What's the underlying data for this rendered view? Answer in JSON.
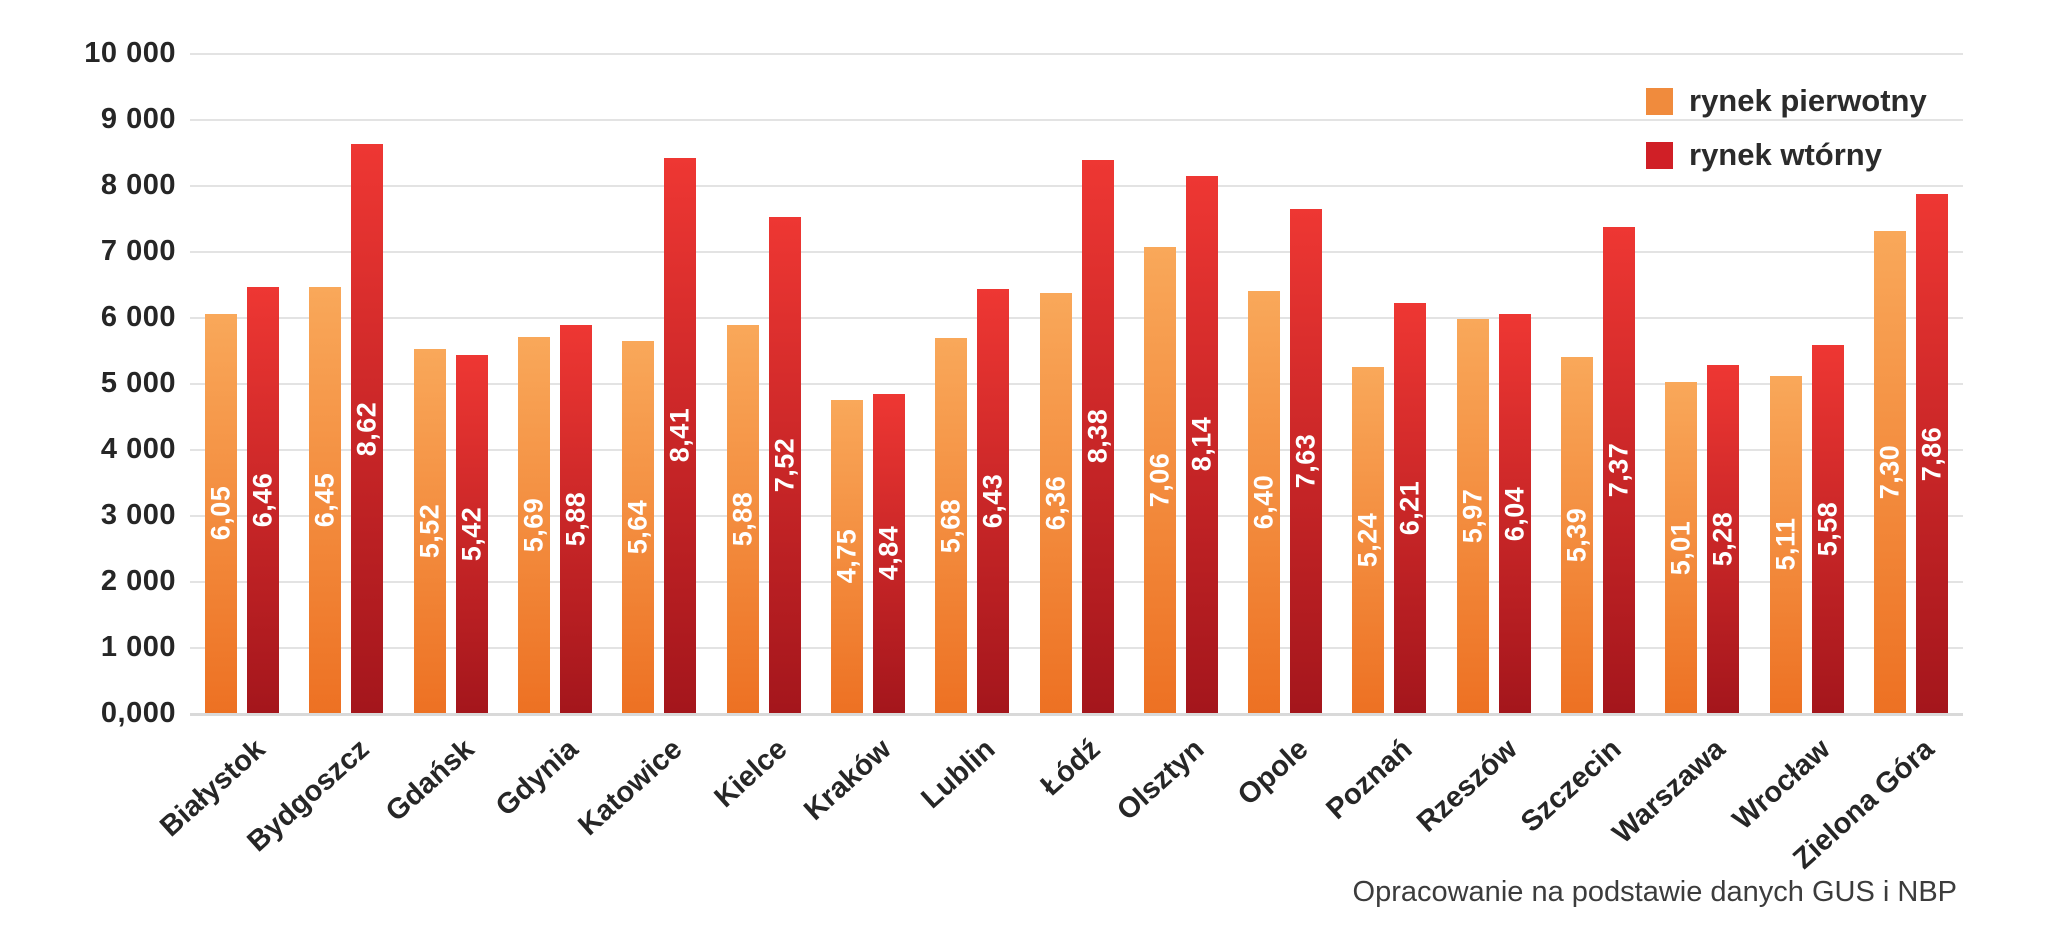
{
  "chart_data": {
    "type": "bar",
    "title": "",
    "categories": [
      "Białystok",
      "Bydgoszcz",
      "Gdańsk",
      "Gdynia",
      "Katowice",
      "Kielce",
      "Kraków",
      "Lublin",
      "Łódź",
      "Olsztyn",
      "Opole",
      "Poznań",
      "Rzeszów",
      "Szczecin",
      "Warszawa",
      "Wrocław",
      "Zielona Góra"
    ],
    "series": [
      {
        "name": "rynek pierwotny",
        "values": [
          6050,
          6450,
          5520,
          5690,
          5640,
          5880,
          4750,
          5680,
          6360,
          7060,
          6400,
          5240,
          5970,
          5390,
          5010,
          5110,
          7300
        ],
        "labels": [
          "6,05",
          "6,45",
          "5,52",
          "5,69",
          "5,64",
          "5,88",
          "4,75",
          "5,68",
          "6,36",
          "7,06",
          "6,40",
          "5,24",
          "5,97",
          "5,39",
          "5,01",
          "5,11",
          "7,30"
        ]
      },
      {
        "name": "rynek wtórny",
        "values": [
          6460,
          8620,
          5420,
          5880,
          8410,
          7520,
          4840,
          6430,
          8380,
          8140,
          7630,
          6210,
          6040,
          7370,
          5280,
          5580,
          7860
        ],
        "labels": [
          "6,46",
          "8,62",
          "5,42",
          "5,88",
          "8,41",
          "7,52",
          "4,84",
          "6,43",
          "8,38",
          "8,14",
          "7,63",
          "6,21",
          "6,04",
          "7,37",
          "5,28",
          "5,58",
          "7,86"
        ]
      }
    ],
    "y_axis": {
      "min": 0,
      "max": 10000,
      "tick_step": 1000,
      "tick_labels": [
        "10 000",
        "9 000",
        "8 000",
        "7 000",
        "6 000",
        "5 000",
        "4 000",
        "3 000",
        "2 000",
        "1 000",
        "0,000"
      ]
    },
    "legend": {
      "position": "top-right",
      "entries": [
        {
          "label": "rynek pierwotny",
          "color": "#F08B3D"
        },
        {
          "label": "rynek wtórny",
          "color": "#D01F26"
        }
      ]
    },
    "grid": true,
    "note": "Opracowanie na podstawie danych GUS i NBP"
  },
  "colors": {
    "primary_top": "#F9A85A",
    "primary_bottom": "#ED7123",
    "secondary_top": "#EE3733",
    "secondary_bottom": "#A4161C",
    "gridline": "#E3E3E3",
    "axis_line": "#D9D9D9",
    "text_dark": "#262626",
    "bar_label": "#FFFFFF",
    "note_text": "#3C3C3C",
    "background": "#FFFFFF"
  }
}
